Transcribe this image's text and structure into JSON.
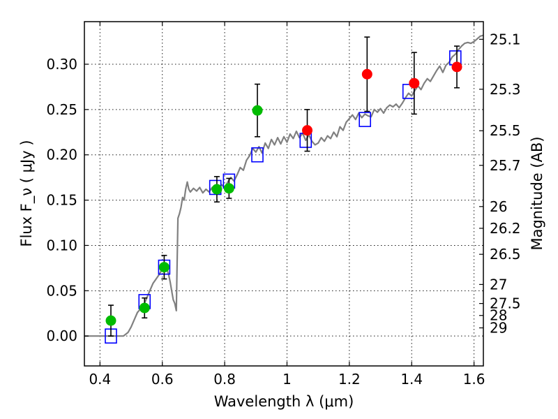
{
  "chart_data": {
    "type": "scatter",
    "xlabel": "Wavelength  λ (μm)",
    "ylabel": "Flux  F_ν  ( μJy )",
    "ylabel_right": "Magnitude (AB)",
    "xlim": [
      0.35,
      1.63
    ],
    "ylim": [
      -0.033,
      0.347
    ],
    "grid": true,
    "x_ticks": [
      0.4,
      0.6,
      0.8,
      1.0,
      1.2,
      1.4,
      1.6
    ],
    "x_tick_labels": [
      "0.4",
      "0.6",
      "0.8",
      "1",
      "1.2",
      "1.4",
      "1.6"
    ],
    "y_ticks": [
      0.0,
      0.05,
      0.1,
      0.15,
      0.2,
      0.25,
      0.3
    ],
    "y_tick_labels": [
      "0.00",
      "0.05",
      "0.10",
      "0.15",
      "0.20",
      "0.25",
      "0.30"
    ],
    "magnitude_ticks": [
      {
        "label": "25.1",
        "flux": 0.3275
      },
      {
        "label": "25.3",
        "flux": 0.2724
      },
      {
        "label": "25.5",
        "flux": 0.2266
      },
      {
        "label": "25.7",
        "flux": 0.1884
      },
      {
        "label": "26",
        "flux": 0.1429
      },
      {
        "label": "26.2",
        "flux": 0.1189
      },
      {
        "label": "26.5",
        "flux": 0.0902
      },
      {
        "label": "27",
        "flux": 0.0569
      },
      {
        "label": "27.5",
        "flux": 0.0359
      },
      {
        "label": "28",
        "flux": 0.0227
      },
      {
        "label": "29",
        "flux": 0.009
      }
    ],
    "series": [
      {
        "kind": "model_spectrum",
        "color": "#808080",
        "points": [
          [
            0.35,
            0.0
          ],
          [
            0.46,
            0.0
          ],
          [
            0.475,
            0.0
          ],
          [
            0.49,
            0.004
          ],
          [
            0.5,
            0.01
          ],
          [
            0.51,
            0.018
          ],
          [
            0.52,
            0.026
          ],
          [
            0.53,
            0.03
          ],
          [
            0.54,
            0.034
          ],
          [
            0.55,
            0.042
          ],
          [
            0.56,
            0.05
          ],
          [
            0.57,
            0.058
          ],
          [
            0.58,
            0.063
          ],
          [
            0.59,
            0.068
          ],
          [
            0.6,
            0.074
          ],
          [
            0.61,
            0.08
          ],
          [
            0.62,
            0.068
          ],
          [
            0.625,
            0.06
          ],
          [
            0.63,
            0.05
          ],
          [
            0.635,
            0.04
          ],
          [
            0.64,
            0.036
          ],
          [
            0.645,
            0.028
          ],
          [
            0.647,
            0.07
          ],
          [
            0.65,
            0.13
          ],
          [
            0.655,
            0.135
          ],
          [
            0.66,
            0.142
          ],
          [
            0.665,
            0.153
          ],
          [
            0.67,
            0.15
          ],
          [
            0.675,
            0.162
          ],
          [
            0.68,
            0.17
          ],
          [
            0.685,
            0.162
          ],
          [
            0.69,
            0.159
          ],
          [
            0.7,
            0.163
          ],
          [
            0.71,
            0.16
          ],
          [
            0.72,
            0.164
          ],
          [
            0.73,
            0.158
          ],
          [
            0.74,
            0.162
          ],
          [
            0.75,
            0.159
          ],
          [
            0.76,
            0.164
          ],
          [
            0.77,
            0.165
          ],
          [
            0.78,
            0.16
          ],
          [
            0.79,
            0.167
          ],
          [
            0.8,
            0.164
          ],
          [
            0.81,
            0.17
          ],
          [
            0.82,
            0.175
          ],
          [
            0.83,
            0.171
          ],
          [
            0.84,
            0.178
          ],
          [
            0.85,
            0.186
          ],
          [
            0.86,
            0.183
          ],
          [
            0.87,
            0.194
          ],
          [
            0.88,
            0.199
          ],
          [
            0.89,
            0.207
          ],
          [
            0.9,
            0.203
          ],
          [
            0.91,
            0.209
          ],
          [
            0.92,
            0.202
          ],
          [
            0.93,
            0.213
          ],
          [
            0.94,
            0.207
          ],
          [
            0.95,
            0.217
          ],
          [
            0.96,
            0.211
          ],
          [
            0.97,
            0.219
          ],
          [
            0.98,
            0.212
          ],
          [
            0.99,
            0.22
          ],
          [
            1.0,
            0.214
          ],
          [
            1.01,
            0.223
          ],
          [
            1.02,
            0.218
          ],
          [
            1.03,
            0.226
          ],
          [
            1.04,
            0.219
          ],
          [
            1.05,
            0.224
          ],
          [
            1.06,
            0.216
          ],
          [
            1.07,
            0.222
          ],
          [
            1.08,
            0.215
          ],
          [
            1.09,
            0.211
          ],
          [
            1.1,
            0.213
          ],
          [
            1.11,
            0.219
          ],
          [
            1.12,
            0.215
          ],
          [
            1.13,
            0.221
          ],
          [
            1.14,
            0.218
          ],
          [
            1.15,
            0.225
          ],
          [
            1.16,
            0.22
          ],
          [
            1.17,
            0.231
          ],
          [
            1.18,
            0.227
          ],
          [
            1.19,
            0.236
          ],
          [
            1.2,
            0.24
          ],
          [
            1.21,
            0.244
          ],
          [
            1.22,
            0.239
          ],
          [
            1.23,
            0.246
          ],
          [
            1.24,
            0.241
          ],
          [
            1.25,
            0.245
          ],
          [
            1.26,
            0.243
          ],
          [
            1.27,
            0.242
          ],
          [
            1.28,
            0.25
          ],
          [
            1.29,
            0.247
          ],
          [
            1.3,
            0.251
          ],
          [
            1.31,
            0.246
          ],
          [
            1.32,
            0.252
          ],
          [
            1.33,
            0.255
          ],
          [
            1.34,
            0.253
          ],
          [
            1.35,
            0.256
          ],
          [
            1.36,
            0.252
          ],
          [
            1.37,
            0.257
          ],
          [
            1.38,
            0.263
          ],
          [
            1.39,
            0.268
          ],
          [
            1.4,
            0.265
          ],
          [
            1.41,
            0.271
          ],
          [
            1.42,
            0.276
          ],
          [
            1.43,
            0.272
          ],
          [
            1.44,
            0.279
          ],
          [
            1.45,
            0.284
          ],
          [
            1.46,
            0.281
          ],
          [
            1.47,
            0.287
          ],
          [
            1.48,
            0.293
          ],
          [
            1.49,
            0.298
          ],
          [
            1.5,
            0.291
          ],
          [
            1.51,
            0.299
          ],
          [
            1.52,
            0.302
          ],
          [
            1.53,
            0.308
          ],
          [
            1.54,
            0.311
          ],
          [
            1.55,
            0.316
          ],
          [
            1.56,
            0.32
          ],
          [
            1.57,
            0.323
          ],
          [
            1.58,
            0.324
          ],
          [
            1.59,
            0.323
          ],
          [
            1.6,
            0.325
          ],
          [
            1.61,
            0.328
          ],
          [
            1.62,
            0.331
          ],
          [
            1.63,
            0.332
          ]
        ]
      },
      {
        "kind": "model_bandpass_flux",
        "color": "#0000ff",
        "marker": "open-square",
        "points": [
          [
            0.435,
            0.0
          ],
          [
            0.543,
            0.038
          ],
          [
            0.606,
            0.076
          ],
          [
            0.77,
            0.164
          ],
          [
            0.814,
            0.171
          ],
          [
            0.905,
            0.2
          ],
          [
            1.06,
            0.216
          ],
          [
            1.25,
            0.239
          ],
          [
            1.39,
            0.27
          ],
          [
            1.54,
            0.307
          ]
        ]
      },
      {
        "kind": "observed_optical",
        "color": "#00bb00",
        "marker": "filled-circle",
        "points": [
          {
            "x": 0.435,
            "y": 0.017,
            "err": 0.017
          },
          {
            "x": 0.543,
            "y": 0.031,
            "err": 0.011
          },
          {
            "x": 0.606,
            "y": 0.076,
            "err": 0.013
          },
          {
            "x": 0.775,
            "y": 0.162,
            "err": 0.014
          },
          {
            "x": 0.814,
            "y": 0.163,
            "err": 0.011
          },
          {
            "x": 0.905,
            "y": 0.249,
            "err": 0.029
          }
        ]
      },
      {
        "kind": "observed_nir",
        "color": "#ff0000",
        "marker": "filled-circle",
        "points": [
          {
            "x": 1.065,
            "y": 0.227,
            "err": 0.023
          },
          {
            "x": 1.257,
            "y": 0.289,
            "err": 0.041
          },
          {
            "x": 1.408,
            "y": 0.279,
            "err": 0.034
          },
          {
            "x": 1.545,
            "y": 0.297,
            "err": 0.023
          }
        ]
      }
    ]
  }
}
